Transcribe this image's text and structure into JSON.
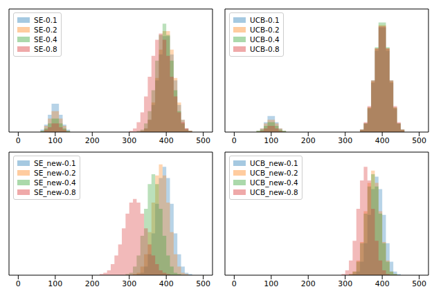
{
  "chart_data": [
    {
      "type": "histogram",
      "legend": "upper left",
      "tick_labels": "x",
      "xlim": [
        -25,
        525
      ],
      "xticks": [
        0,
        100,
        200,
        300,
        400,
        500
      ],
      "ylim": [
        0,
        100
      ],
      "bins": [
        40,
        50,
        60,
        70,
        80,
        90,
        100,
        110,
        120,
        130,
        140,
        150,
        160,
        170,
        180,
        190,
        200,
        210,
        220,
        230,
        240,
        250,
        260,
        270,
        280,
        290,
        300,
        310,
        320,
        330,
        340,
        350,
        360,
        370,
        380,
        390,
        400,
        410,
        420,
        430,
        440,
        450,
        460,
        470,
        480
      ],
      "series": [
        {
          "name": "SE-0.1",
          "color": "#1f77b4",
          "values": [
            0,
            0,
            2,
            6,
            14,
            23,
            23,
            14,
            6,
            2,
            0,
            0,
            0,
            0,
            0,
            0,
            0,
            0,
            0,
            0,
            0,
            0,
            0,
            0,
            0,
            0,
            0,
            0,
            0,
            1,
            3,
            10,
            22,
            42,
            63,
            78,
            78,
            63,
            42,
            22,
            10,
            3,
            1,
            0
          ]
        },
        {
          "name": "SE-0.2",
          "color": "#ff7f0e",
          "values": [
            0,
            0,
            1,
            5,
            11,
            17,
            17,
            11,
            5,
            1,
            0,
            0,
            0,
            0,
            0,
            0,
            0,
            0,
            0,
            0,
            0,
            0,
            0,
            0,
            0,
            0,
            0,
            0,
            0,
            1,
            3,
            10,
            24,
            44,
            67,
            82,
            82,
            67,
            44,
            24,
            10,
            3,
            1,
            0
          ]
        },
        {
          "name": "SE-0.4",
          "color": "#2ca02c",
          "values": [
            0,
            0,
            1,
            3,
            7,
            11,
            11,
            7,
            3,
            1,
            0,
            0,
            0,
            0,
            0,
            0,
            0,
            0,
            0,
            0,
            0,
            0,
            0,
            0,
            0,
            0,
            0,
            0,
            1,
            2,
            7,
            17,
            34,
            58,
            79,
            88,
            79,
            58,
            34,
            17,
            7,
            2,
            1,
            0
          ]
        },
        {
          "name": "SE-0.8",
          "color": "#d62728",
          "values": [
            0,
            0,
            0,
            2,
            4,
            7,
            7,
            4,
            2,
            0,
            0,
            0,
            0,
            0,
            0,
            0,
            0,
            0,
            0,
            0,
            0,
            0,
            0,
            0,
            0,
            0,
            1,
            3,
            8,
            16,
            29,
            45,
            62,
            75,
            80,
            75,
            62,
            45,
            29,
            16,
            8,
            3,
            1,
            0
          ]
        }
      ]
    },
    {
      "type": "histogram",
      "legend": "upper left",
      "tick_labels": "x",
      "xlim": [
        -25,
        525
      ],
      "xticks": [
        0,
        100,
        200,
        300,
        400,
        500
      ],
      "ylim": [
        0,
        100
      ],
      "bins": [
        40,
        50,
        60,
        70,
        80,
        90,
        100,
        110,
        120,
        130,
        140,
        150,
        160,
        170,
        180,
        190,
        200,
        210,
        220,
        230,
        240,
        250,
        260,
        270,
        280,
        290,
        300,
        310,
        320,
        330,
        340,
        350,
        360,
        370,
        380,
        390,
        400,
        410,
        420,
        430,
        440,
        450,
        460,
        470,
        480
      ],
      "series": [
        {
          "name": "UCB-0.1",
          "color": "#1f77b4",
          "values": [
            0,
            0,
            1,
            3,
            8,
            13,
            13,
            8,
            3,
            1,
            0,
            0,
            0,
            0,
            0,
            0,
            0,
            0,
            0,
            0,
            0,
            0,
            0,
            0,
            0,
            0,
            0,
            0,
            0,
            0,
            2,
            7,
            19,
            40,
            66,
            85,
            85,
            66,
            40,
            19,
            7,
            2,
            0,
            0
          ]
        },
        {
          "name": "UCB-0.2",
          "color": "#ff7f0e",
          "values": [
            0,
            0,
            1,
            3,
            7,
            10,
            10,
            7,
            3,
            1,
            0,
            0,
            0,
            0,
            0,
            0,
            0,
            0,
            0,
            0,
            0,
            0,
            0,
            0,
            0,
            0,
            0,
            0,
            0,
            0,
            2,
            7,
            20,
            41,
            68,
            87,
            87,
            68,
            41,
            20,
            7,
            2,
            0,
            0
          ]
        },
        {
          "name": "UCB-0.4",
          "color": "#2ca02c",
          "values": [
            0,
            0,
            1,
            2,
            5,
            8,
            8,
            5,
            2,
            1,
            0,
            0,
            0,
            0,
            0,
            0,
            0,
            0,
            0,
            0,
            0,
            0,
            0,
            0,
            0,
            0,
            0,
            0,
            0,
            0,
            2,
            7,
            20,
            42,
            69,
            89,
            89,
            69,
            42,
            20,
            7,
            2,
            0,
            0
          ]
        },
        {
          "name": "UCB-0.8",
          "color": "#d62728",
          "values": [
            0,
            0,
            0,
            1,
            3,
            5,
            5,
            3,
            1,
            0,
            0,
            0,
            0,
            0,
            0,
            0,
            0,
            0,
            0,
            0,
            0,
            0,
            0,
            0,
            0,
            0,
            0,
            0,
            0,
            0,
            2,
            8,
            21,
            42,
            68,
            86,
            86,
            68,
            42,
            21,
            8,
            2,
            0,
            0
          ]
        }
      ]
    },
    {
      "type": "histogram",
      "legend": "upper left",
      "tick_labels": "x",
      "xlim": [
        -25,
        525
      ],
      "xticks": [
        0,
        100,
        200,
        300,
        400,
        500
      ],
      "ylim": [
        0,
        100
      ],
      "bins": [
        40,
        50,
        60,
        70,
        80,
        90,
        100,
        110,
        120,
        130,
        140,
        150,
        160,
        170,
        180,
        190,
        200,
        210,
        220,
        230,
        240,
        250,
        260,
        270,
        280,
        290,
        300,
        310,
        320,
        330,
        340,
        350,
        360,
        370,
        380,
        390,
        400,
        410,
        420,
        430,
        440,
        450,
        460,
        470,
        480
      ],
      "series": [
        {
          "name": "SE_new-0.1",
          "color": "#1f77b4",
          "values": [
            0,
            0,
            0,
            0,
            0,
            0,
            0,
            0,
            0,
            0,
            0,
            0,
            0,
            0,
            0,
            0,
            0,
            0,
            0,
            0,
            0,
            0,
            0,
            0,
            0,
            0,
            0,
            0,
            1,
            2,
            7,
            17,
            34,
            58,
            79,
            88,
            79,
            58,
            34,
            17,
            7,
            2,
            1,
            0
          ]
        },
        {
          "name": "SE_new-0.2",
          "color": "#ff7f0e",
          "values": [
            0,
            0,
            0,
            0,
            0,
            0,
            0,
            0,
            0,
            0,
            0,
            0,
            0,
            0,
            0,
            0,
            0,
            0,
            0,
            0,
            0,
            0,
            0,
            0,
            0,
            0,
            0,
            1,
            2,
            7,
            17,
            35,
            59,
            81,
            90,
            81,
            59,
            35,
            17,
            7,
            2,
            1,
            0,
            0
          ]
        },
        {
          "name": "SE_new-0.4",
          "color": "#2ca02c",
          "values": [
            0,
            0,
            0,
            0,
            0,
            0,
            0,
            0,
            0,
            0,
            0,
            0,
            0,
            0,
            0,
            0,
            0,
            0,
            0,
            0,
            0,
            0,
            0,
            0,
            0,
            1,
            2,
            7,
            16,
            32,
            54,
            74,
            82,
            74,
            54,
            32,
            16,
            7,
            2,
            1,
            0,
            0,
            0,
            0
          ]
        },
        {
          "name": "SE_new-0.8",
          "color": "#d62728",
          "values": [
            0,
            0,
            0,
            0,
            0,
            0,
            0,
            0,
            0,
            0,
            0,
            0,
            0,
            0,
            0,
            0,
            0,
            0,
            1,
            2,
            4,
            9,
            16,
            25,
            38,
            50,
            59,
            62,
            59,
            50,
            38,
            25,
            16,
            9,
            4,
            2,
            1,
            0,
            0,
            0,
            0,
            0,
            0,
            0
          ]
        }
      ]
    },
    {
      "type": "histogram",
      "legend": "upper left",
      "tick_labels": "x",
      "xlim": [
        -25,
        525
      ],
      "xticks": [
        0,
        100,
        200,
        300,
        400,
        500
      ],
      "ylim": [
        0,
        100
      ],
      "bins": [
        40,
        50,
        60,
        70,
        80,
        90,
        100,
        110,
        120,
        130,
        140,
        150,
        160,
        170,
        180,
        190,
        200,
        210,
        220,
        230,
        240,
        250,
        260,
        270,
        280,
        290,
        300,
        310,
        320,
        330,
        340,
        350,
        360,
        370,
        380,
        390,
        400,
        410,
        420,
        430,
        440,
        450,
        460,
        470,
        480
      ],
      "series": [
        {
          "name": "UCB_new-0.1",
          "color": "#1f77b4",
          "values": [
            0,
            0,
            0,
            0,
            0,
            0,
            0,
            0,
            0,
            0,
            0,
            0,
            0,
            0,
            0,
            0,
            0,
            0,
            0,
            0,
            0,
            0,
            0,
            0,
            0,
            0,
            0,
            0,
            1,
            3,
            11,
            26,
            49,
            70,
            80,
            70,
            49,
            26,
            11,
            3,
            1,
            0,
            0,
            0
          ]
        },
        {
          "name": "UCB_new-0.2",
          "color": "#ff7f0e",
          "values": [
            0,
            0,
            0,
            0,
            0,
            0,
            0,
            0,
            0,
            0,
            0,
            0,
            0,
            0,
            0,
            0,
            0,
            0,
            0,
            0,
            0,
            0,
            0,
            0,
            0,
            0,
            0,
            1,
            3,
            12,
            27,
            52,
            75,
            85,
            75,
            52,
            27,
            12,
            3,
            1,
            0,
            0,
            0,
            0
          ]
        },
        {
          "name": "UCB_new-0.4",
          "color": "#2ca02c",
          "values": [
            0,
            0,
            0,
            0,
            0,
            0,
            0,
            0,
            0,
            0,
            0,
            0,
            0,
            0,
            0,
            0,
            0,
            0,
            0,
            0,
            0,
            0,
            0,
            0,
            0,
            0,
            0,
            1,
            3,
            11,
            26,
            50,
            72,
            82,
            72,
            50,
            26,
            11,
            3,
            1,
            0,
            0,
            0,
            0
          ]
        },
        {
          "name": "UCB_new-0.8",
          "color": "#d62728",
          "values": [
            0,
            0,
            0,
            0,
            0,
            0,
            0,
            0,
            0,
            0,
            0,
            0,
            0,
            0,
            0,
            0,
            0,
            0,
            0,
            0,
            0,
            0,
            0,
            0,
            0,
            1,
            4,
            12,
            28,
            54,
            77,
            88,
            77,
            54,
            28,
            12,
            4,
            1,
            0,
            0,
            0,
            0,
            0,
            0
          ]
        }
      ]
    }
  ]
}
